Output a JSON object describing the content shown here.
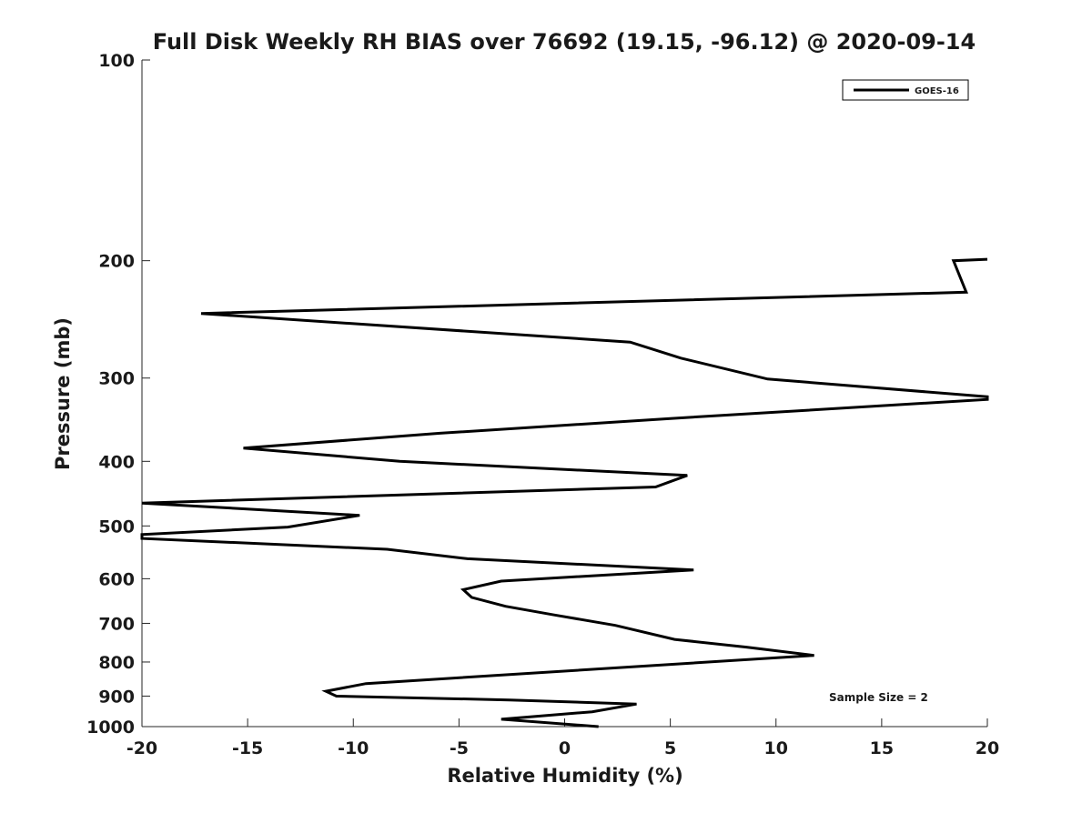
{
  "chart_data": {
    "type": "line",
    "title": "Full Disk Weekly RH BIAS over 76692 (19.15, -96.12) @ 2020-09-14",
    "xlabel": "Relative Humidity (%)",
    "ylabel": "Pressure (mb)",
    "xlim": [
      -20,
      20
    ],
    "ylim": [
      100,
      1000
    ],
    "y_scale": "log",
    "y_reversed": true,
    "grid": false,
    "legend_position": "top-right",
    "xticks": [
      "-20",
      "-15",
      "-10",
      "-5",
      "0",
      "5",
      "10",
      "15",
      "20"
    ],
    "yticks": [
      "100",
      "200",
      "300",
      "400",
      "500",
      "600",
      "700",
      "800",
      "900",
      "1000"
    ],
    "annotation": "Sample Size = 2",
    "series": [
      {
        "name": "GOES-16",
        "color": "#000000",
        "points": [
          {
            "x": 1.6,
            "y": 1000
          },
          {
            "x": -3.0,
            "y": 975
          },
          {
            "x": 1.3,
            "y": 950
          },
          {
            "x": 3.4,
            "y": 925
          },
          {
            "x": -2.6,
            "y": 912
          },
          {
            "x": -10.8,
            "y": 900
          },
          {
            "x": -11.3,
            "y": 885
          },
          {
            "x": -9.4,
            "y": 862
          },
          {
            "x": 11.8,
            "y": 782
          },
          {
            "x": 8.6,
            "y": 760
          },
          {
            "x": 5.2,
            "y": 740
          },
          {
            "x": 2.4,
            "y": 705
          },
          {
            "x": -0.5,
            "y": 680
          },
          {
            "x": -2.8,
            "y": 660
          },
          {
            "x": -4.4,
            "y": 640
          },
          {
            "x": -4.8,
            "y": 623
          },
          {
            "x": -3.0,
            "y": 605
          },
          {
            "x": 6.1,
            "y": 582
          },
          {
            "x": -4.6,
            "y": 560
          },
          {
            "x": -8.4,
            "y": 542
          },
          {
            "x": -20.0,
            "y": 522
          },
          {
            "x": -20.0,
            "y": 515
          },
          {
            "x": -13.1,
            "y": 502
          },
          {
            "x": -9.7,
            "y": 482
          },
          {
            "x": -20.0,
            "y": 462
          },
          {
            "x": 4.3,
            "y": 437
          },
          {
            "x": 5.8,
            "y": 420
          },
          {
            "x": -7.8,
            "y": 400
          },
          {
            "x": -15.2,
            "y": 382
          },
          {
            "x": -5.9,
            "y": 363
          },
          {
            "x": 5.0,
            "y": 345
          },
          {
            "x": 20.0,
            "y": 323
          },
          {
            "x": 20.0,
            "y": 320
          },
          {
            "x": 9.6,
            "y": 301
          },
          {
            "x": 5.5,
            "y": 280
          },
          {
            "x": 3.1,
            "y": 265
          },
          {
            "x": -17.2,
            "y": 240
          },
          {
            "x": 19.0,
            "y": 223
          },
          {
            "x": 18.4,
            "y": 200
          },
          {
            "x": 20.0,
            "y": 199
          }
        ]
      }
    ]
  }
}
